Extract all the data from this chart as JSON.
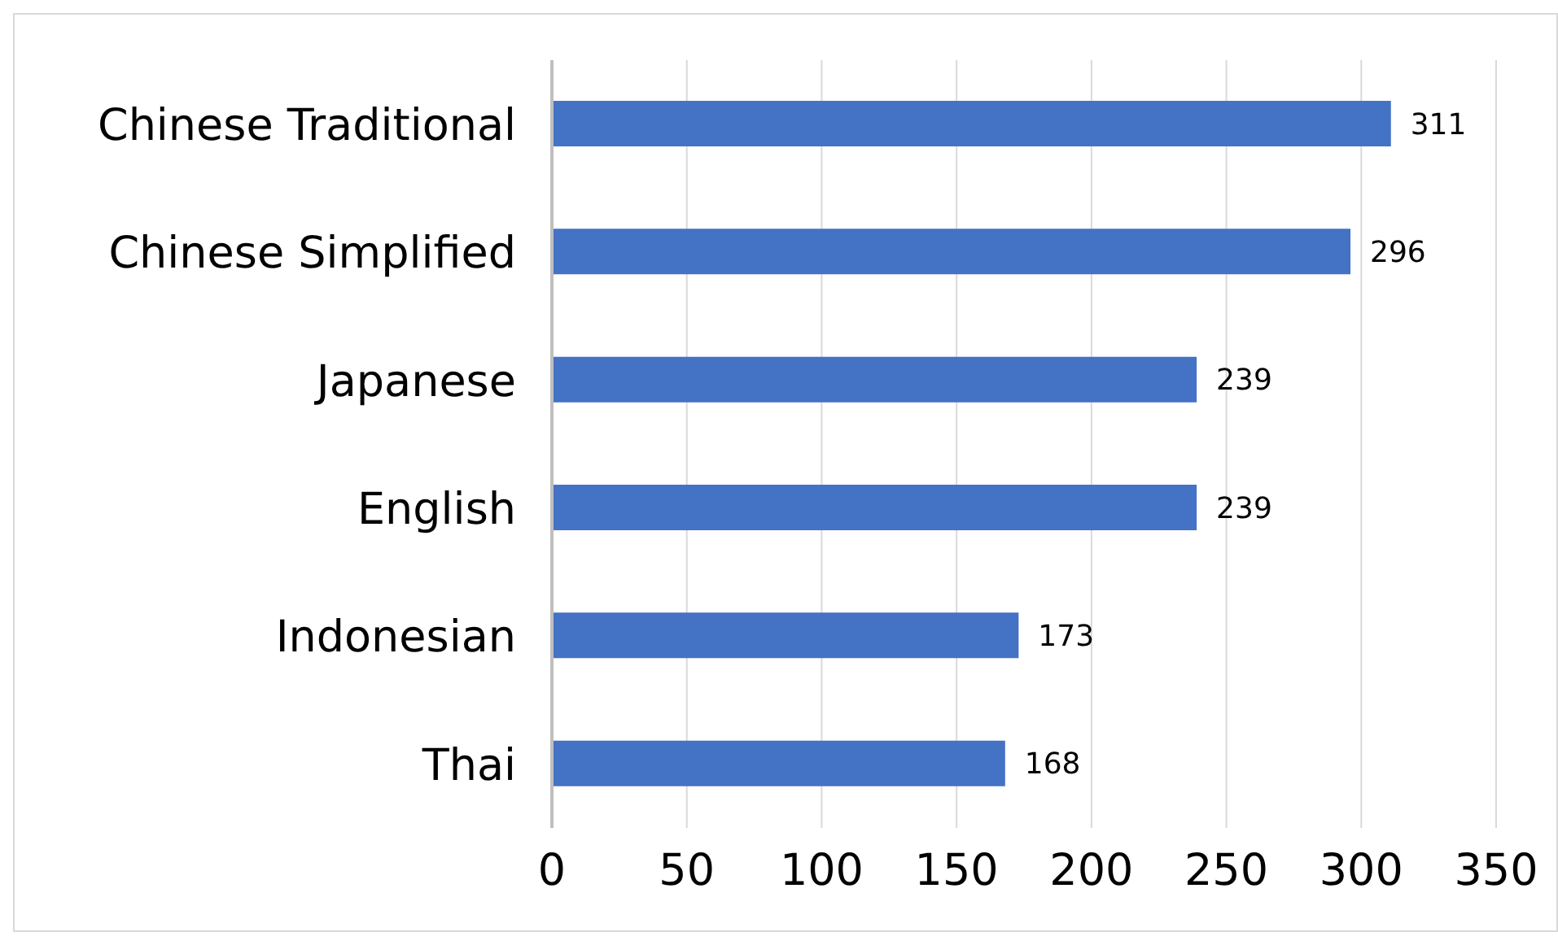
{
  "chart_data": {
    "type": "bar",
    "orientation": "horizontal",
    "categories": [
      "Chinese Traditional",
      "Chinese Simplified",
      "Japanese",
      "English",
      "Indonesian",
      "Thai"
    ],
    "values": [
      311,
      296,
      239,
      239,
      173,
      168
    ],
    "color": "#4472c4",
    "xlim": [
      0,
      350
    ],
    "xticks": [
      0,
      50,
      100,
      150,
      200,
      250,
      300,
      350
    ],
    "grid": "x",
    "data_labels": true,
    "legend": false
  }
}
